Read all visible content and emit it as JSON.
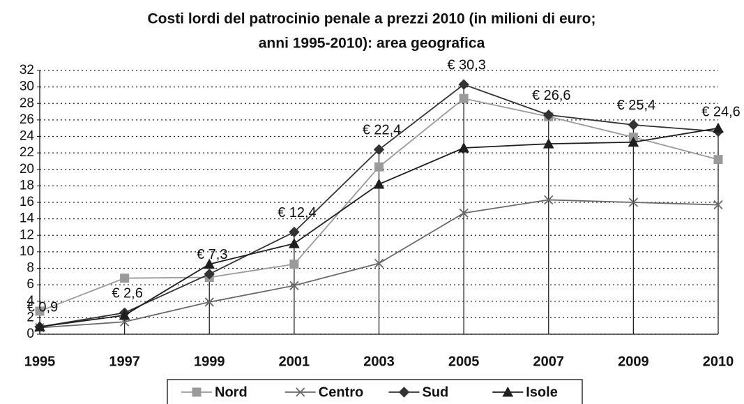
{
  "chart_data": {
    "type": "line",
    "title": [
      "Costi lordi del patrocinio penale a prezzi 2010 (in milioni di euro;",
      "anni 1995-2010): area geografica"
    ],
    "categories": [
      "1995",
      "1997",
      "1999",
      "2001",
      "2003",
      "2005",
      "2007",
      "2009",
      "2010"
    ],
    "series": [
      {
        "name": "Nord",
        "color": "#9a9a9a",
        "marker": "square",
        "values": [
          2.8,
          6.8,
          6.9,
          8.5,
          20.3,
          28.6,
          26.4,
          23.9,
          21.2
        ]
      },
      {
        "name": "Centro",
        "color": "#6a6a6a",
        "marker": "x",
        "values": [
          0.8,
          1.5,
          3.9,
          5.9,
          8.6,
          14.7,
          16.3,
          16.0,
          15.7
        ]
      },
      {
        "name": "Sud",
        "color": "#333333",
        "marker": "diamond",
        "values": [
          0.9,
          2.6,
          7.3,
          12.4,
          22.4,
          30.3,
          26.6,
          25.4,
          24.6
        ],
        "value_labels": [
          "€ 0,9",
          "€ 2,6",
          "€ 7,3",
          "€ 12,4",
          "€ 22,4",
          "€ 30,3",
          "€ 26,6",
          "€ 25,4",
          "€ 24,6"
        ]
      },
      {
        "name": "Isole",
        "color": "#1e1e1e",
        "marker": "triangle",
        "values": [
          0.9,
          2.3,
          8.5,
          11.0,
          18.2,
          22.6,
          23.1,
          23.3,
          25.0
        ]
      }
    ],
    "ylim": [
      0,
      32
    ],
    "yticks": [
      0,
      2,
      4,
      6,
      8,
      10,
      12,
      14,
      16,
      18,
      20,
      22,
      24,
      26,
      28,
      30,
      32
    ],
    "grid": true,
    "legend": "bottom"
  }
}
